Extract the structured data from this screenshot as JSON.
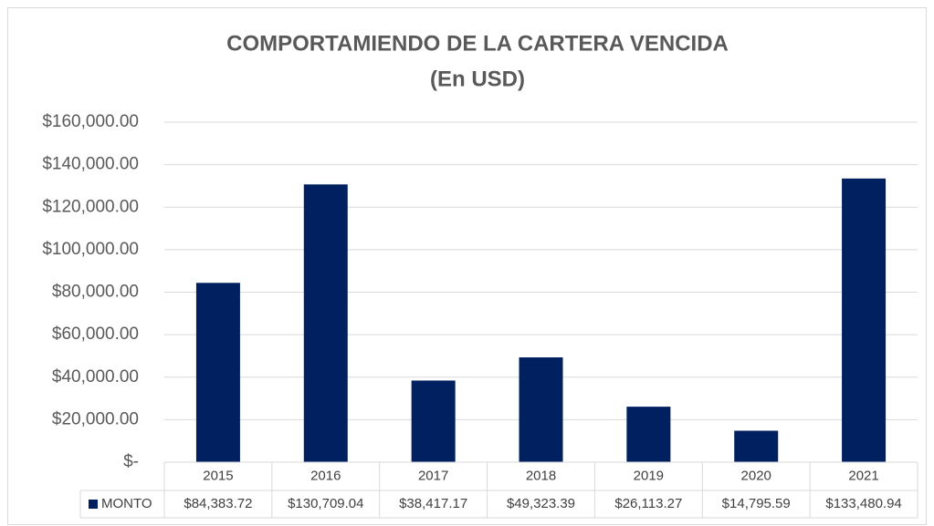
{
  "chart_data": {
    "type": "bar",
    "title": "COMPORTAMIENDO DE LA CARTERA VENCIDA",
    "subtitle": "(En USD)",
    "categories": [
      "2015",
      "2016",
      "2017",
      "2018",
      "2019",
      "2020",
      "2021"
    ],
    "series": [
      {
        "name": "MONTO",
        "color": "#002060",
        "values": [
          84383.72,
          130709.04,
          38417.17,
          49323.39,
          26113.27,
          14795.59,
          133480.94
        ],
        "value_labels": [
          "$84,383.72",
          "$130,709.04",
          "$38,417.17",
          "$49,323.39",
          "$26,113.27",
          "$14,795.59",
          "$133,480.94"
        ]
      }
    ],
    "ylim": [
      0,
      160000
    ],
    "yticks": [
      {
        "value": 0,
        "label": "$-"
      },
      {
        "value": 20000,
        "label": "$20,000.00"
      },
      {
        "value": 40000,
        "label": "$40,000.00"
      },
      {
        "value": 60000,
        "label": "$60,000.00"
      },
      {
        "value": 80000,
        "label": "$80,000.00"
      },
      {
        "value": 100000,
        "label": "$100,000.00"
      },
      {
        "value": 120000,
        "label": "$120,000.00"
      },
      {
        "value": 140000,
        "label": "$140,000.00"
      },
      {
        "value": 160000,
        "label": "$160,000.00"
      }
    ],
    "grid": true
  }
}
